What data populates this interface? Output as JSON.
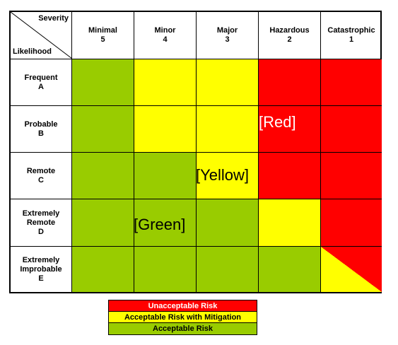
{
  "corner": {
    "severity_label": "Severity",
    "likelihood_label": "Likelihood"
  },
  "severity": [
    {
      "name": "Minimal",
      "level": "5"
    },
    {
      "name": "Minor",
      "level": "4"
    },
    {
      "name": "Major",
      "level": "3"
    },
    {
      "name": "Hazardous",
      "level": "2"
    },
    {
      "name": "Catastrophic",
      "level": "1"
    }
  ],
  "likelihood": [
    {
      "lines": [
        "Frequent",
        "A"
      ]
    },
    {
      "lines": [
        "Probable",
        "B"
      ]
    },
    {
      "lines": [
        "Remote",
        "C"
      ]
    },
    {
      "lines": [
        "Extremely",
        "Remote",
        "D"
      ]
    },
    {
      "lines": [
        "Extremely",
        "Improbable",
        "E"
      ]
    }
  ],
  "colors": {
    "red": "#ff0000",
    "yellow": "#ffff00",
    "green": "#99cc00"
  },
  "grid": [
    [
      "green",
      "yellow",
      "yellow",
      "red",
      "red"
    ],
    [
      "green",
      "yellow",
      "yellow",
      "red",
      "red"
    ],
    [
      "green",
      "green",
      "yellow",
      "red",
      "red"
    ],
    [
      "green",
      "green",
      "green",
      "yellow",
      "red"
    ],
    [
      "green",
      "green",
      "green",
      "green",
      "yellow-red-split"
    ]
  ],
  "overlay_labels": {
    "red": "[Red]",
    "yellow": "[Yellow]",
    "green": "[Green]"
  },
  "legend": [
    {
      "label": "Unacceptable Risk",
      "color": "red",
      "text_color": "#ffffff"
    },
    {
      "label": "Acceptable Risk with Mitigation",
      "color": "yellow",
      "text_color": "#000000"
    },
    {
      "label": "Acceptable Risk",
      "color": "green",
      "text_color": "#000000"
    }
  ]
}
